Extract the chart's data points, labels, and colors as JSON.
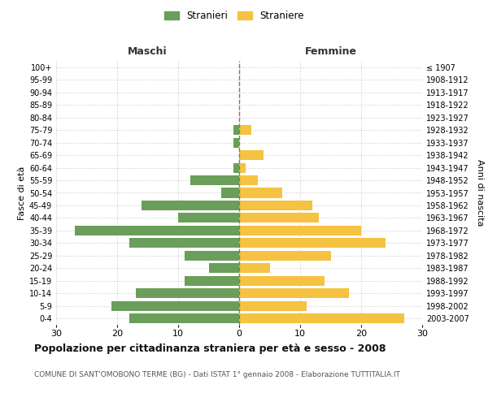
{
  "age_groups": [
    "0-4",
    "5-9",
    "10-14",
    "15-19",
    "20-24",
    "25-29",
    "30-34",
    "35-39",
    "40-44",
    "45-49",
    "50-54",
    "55-59",
    "60-64",
    "65-69",
    "70-74",
    "75-79",
    "80-84",
    "85-89",
    "90-94",
    "95-99",
    "100+"
  ],
  "birth_years": [
    "2003-2007",
    "1998-2002",
    "1993-1997",
    "1988-1992",
    "1983-1987",
    "1978-1982",
    "1973-1977",
    "1968-1972",
    "1963-1967",
    "1958-1962",
    "1953-1957",
    "1948-1952",
    "1943-1947",
    "1938-1942",
    "1933-1937",
    "1928-1932",
    "1923-1927",
    "1918-1922",
    "1913-1917",
    "1908-1912",
    "≤ 1907"
  ],
  "males": [
    18,
    21,
    17,
    9,
    5,
    9,
    18,
    27,
    10,
    16,
    3,
    8,
    1,
    0,
    1,
    1,
    0,
    0,
    0,
    0,
    0
  ],
  "females": [
    27,
    11,
    18,
    14,
    5,
    15,
    24,
    20,
    13,
    12,
    7,
    3,
    1,
    4,
    0,
    2,
    0,
    0,
    0,
    0,
    0
  ],
  "male_color": "#6a9e5a",
  "female_color": "#f5c242",
  "grid_color": "#cccccc",
  "center_line_color": "#808040",
  "title": "Popolazione per cittadinanza straniera per età e sesso - 2008",
  "subtitle": "COMUNE DI SANT'OMOBONO TERME (BG) - Dati ISTAT 1° gennaio 2008 - Elaborazione TUTTITALIA.IT",
  "ylabel_left": "Fasce di età",
  "ylabel_right": "Anni di nascita",
  "xlabel_left": "Maschi",
  "xlabel_right": "Femmine",
  "legend_male": "Stranieri",
  "legend_female": "Straniere",
  "xlim": 30,
  "background_color": "#ffffff"
}
